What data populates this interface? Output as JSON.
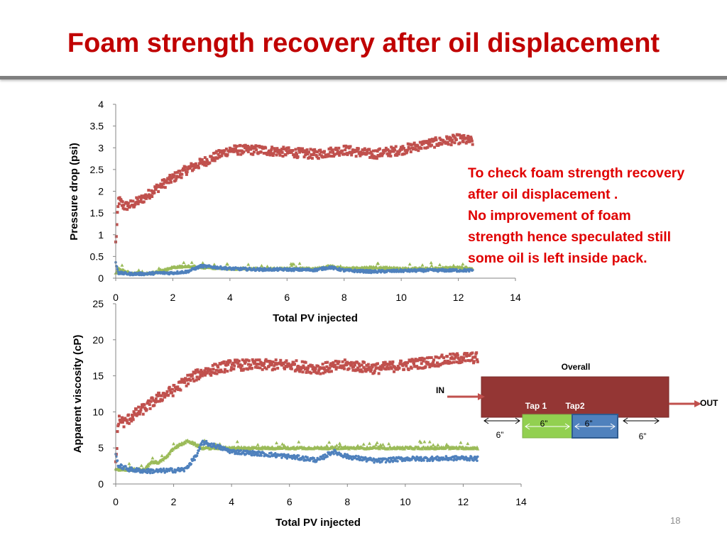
{
  "slide": {
    "title": "Foam strength recovery after oil displacement",
    "page_number": "18"
  },
  "note": {
    "lines": [
      "To check foam strength recovery",
      "after oil displacement .",
      "No improvement of foam",
      "strength hence speculated still",
      "some oil is left inside pack."
    ]
  },
  "diagram": {
    "overall_label": "Overall",
    "in_label": "IN",
    "out_label": "OUT",
    "tap1_label": "Tap 1",
    "tap2_label": "Tap2",
    "lengths": [
      "6”",
      "6”",
      "6”",
      "6”"
    ],
    "colors": {
      "pack": "#943634",
      "tap1": "#92d050",
      "tap2": "#4f81bd",
      "arrow": "#c0504d"
    }
  },
  "chart_data": [
    {
      "type": "scatter",
      "title": "",
      "xlabel": "Total PV injected",
      "ylabel": "Pressure drop (psi)",
      "xlim": [
        0,
        14
      ],
      "ylim": [
        0,
        4
      ],
      "x_ticks": [
        "0",
        "2",
        "4",
        "6",
        "8",
        "10",
        "12",
        "14"
      ],
      "y_ticks": [
        "0",
        "0.5",
        "1",
        "1.5",
        "2",
        "2.5",
        "3",
        "3.5",
        "4"
      ],
      "grid": false,
      "series": [
        {
          "color": "#c0504d",
          "marker": "square",
          "x": [
            0,
            0.1,
            0.3,
            0.6,
            1,
            1.5,
            2,
            2.5,
            3,
            3.5,
            4,
            5,
            6,
            7,
            8,
            9,
            10,
            11,
            12,
            12.5
          ],
          "y": [
            0.8,
            1.8,
            1.65,
            1.7,
            1.85,
            2.1,
            2.3,
            2.5,
            2.65,
            2.8,
            2.95,
            2.95,
            2.9,
            2.85,
            2.95,
            2.85,
            2.95,
            3.1,
            3.2,
            3.15
          ]
        },
        {
          "color": "#4f81bd",
          "marker": "dot",
          "x": [
            0,
            0.1,
            0.5,
            1,
            1.5,
            2,
            2.5,
            3,
            3.5,
            4,
            5,
            6,
            7,
            7.5,
            8,
            9,
            10,
            11,
            12,
            12.5
          ],
          "y": [
            0.35,
            0.12,
            0.1,
            0.1,
            0.12,
            0.12,
            0.15,
            0.28,
            0.25,
            0.22,
            0.2,
            0.2,
            0.19,
            0.25,
            0.18,
            0.15,
            0.17,
            0.18,
            0.18,
            0.18
          ]
        },
        {
          "color": "#9bbb59",
          "marker": "triangle",
          "x": [
            0,
            0.1,
            0.5,
            1,
            1.5,
            2,
            2.5,
            3,
            4,
            5,
            6,
            7,
            7.5,
            8,
            9,
            10,
            11,
            12,
            12.5
          ],
          "y": [
            0.1,
            0.22,
            0.12,
            0.1,
            0.15,
            0.25,
            0.28,
            0.25,
            0.22,
            0.22,
            0.22,
            0.22,
            0.28,
            0.22,
            0.25,
            0.22,
            0.22,
            0.25,
            0.22
          ]
        }
      ]
    },
    {
      "type": "scatter",
      "title": "",
      "xlabel": "Total PV injected",
      "ylabel": "Apparent viscosity (cP)",
      "xlim": [
        0,
        14
      ],
      "ylim": [
        0,
        25
      ],
      "x_ticks": [
        "0",
        "2",
        "4",
        "6",
        "8",
        "10",
        "12",
        "14"
      ],
      "y_ticks": [
        "0",
        "5",
        "10",
        "15",
        "20",
        "25"
      ],
      "grid": false,
      "series": [
        {
          "color": "#c0504d",
          "marker": "square",
          "x": [
            0,
            0.1,
            0.3,
            0.6,
            1,
            1.5,
            2,
            2.5,
            3,
            3.5,
            4,
            5,
            6,
            7,
            8,
            9,
            10,
            11,
            12,
            12.5
          ],
          "y": [
            3,
            9,
            8.5,
            9.5,
            10.5,
            12,
            13,
            14.5,
            15.5,
            16,
            16.5,
            16.5,
            16.5,
            16,
            16.5,
            16,
            16.5,
            17,
            17.5,
            17.5
          ]
        },
        {
          "color": "#4f81bd",
          "marker": "dot",
          "x": [
            0,
            0.1,
            0.5,
            1,
            1.5,
            2,
            2.4,
            2.8,
            3,
            3.5,
            4,
            5,
            6,
            7,
            7.5,
            8,
            9,
            10,
            11,
            12,
            12.5
          ],
          "y": [
            4,
            2.5,
            2,
            1.8,
            1.8,
            1.9,
            2,
            4,
            5.8,
            5.2,
            4.5,
            4.2,
            3.8,
            3.3,
            4.5,
            3.8,
            3.2,
            3.5,
            3.5,
            3.6,
            3.5
          ]
        },
        {
          "color": "#9bbb59",
          "marker": "triangle",
          "x": [
            0,
            0.1,
            0.5,
            1,
            1.2,
            1.5,
            1.8,
            2,
            2.5,
            3,
            4,
            5,
            6,
            7,
            8,
            9,
            10,
            11,
            12,
            12.5
          ],
          "y": [
            2,
            2,
            2,
            2,
            3,
            3,
            4,
            5,
            6,
            5,
            5,
            5,
            5,
            5,
            5,
            5,
            5,
            5,
            5,
            5
          ]
        }
      ]
    }
  ]
}
